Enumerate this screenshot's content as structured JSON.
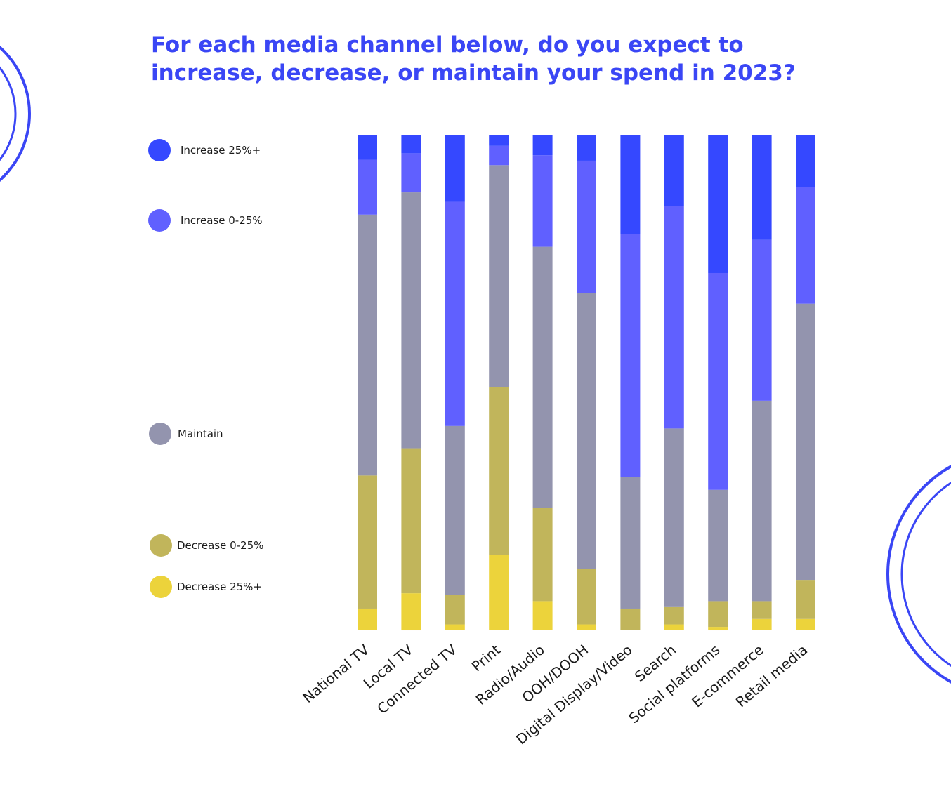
{
  "colors": {
    "title": "#3a46f5",
    "increase_25_plus": "#3548ff",
    "increase_0_25": "#6060ff",
    "maintain": "#9394ae",
    "decrease_0_25": "#c1b55b",
    "decrease_25_plus": "#ecd33b",
    "decoration": "#3a46f5"
  },
  "title": {
    "line1": "For each media channel below, do you expect to",
    "line2": "increase, decrease, or maintain your spend in 2023?"
  },
  "legend": [
    {
      "key": "increase_25_plus",
      "label": "Increase 25%+",
      "color": "#3548ff"
    },
    {
      "key": "increase_0_25",
      "label": "Increase 0-25%",
      "color": "#6060ff"
    },
    {
      "key": "maintain",
      "label": "Maintain",
      "color": "#9394ae"
    },
    {
      "key": "decrease_0_25",
      "label": "Decrease 0-25%",
      "color": "#c1b55b"
    },
    {
      "key": "decrease_25_plus",
      "label": "Decrease 25%+",
      "color": "#ecd33b"
    }
  ],
  "chart_data": {
    "type": "bar",
    "stacked": true,
    "title": "For each media channel below, do you expect to increase, decrease, or maintain your spend in 2023?",
    "xlabel": "",
    "ylabel": "",
    "ylim": [
      0,
      100
    ],
    "categories": [
      "National TV",
      "Local TV",
      "Connected TV",
      "Print",
      "Radio/Audio",
      "OOH/DOOH",
      "Digital Display/Video",
      "Search",
      "Social platforms",
      "E-commerce",
      "Retail media"
    ],
    "series": [
      {
        "name": "Decrease 25%+",
        "color": "#ecd33b",
        "values": [
          4.4,
          7.5,
          1.2,
          15.3,
          5.9,
          1.2,
          0.1,
          1.2,
          0.7,
          2.3,
          2.3
        ]
      },
      {
        "name": "Decrease 0-25%",
        "color": "#c1b55b",
        "values": [
          26.9,
          29.3,
          5.9,
          33.9,
          18.9,
          11.2,
          4.3,
          3.5,
          5.2,
          3.6,
          7.9
        ]
      },
      {
        "name": "Maintain",
        "color": "#9394ae",
        "values": [
          52.7,
          51.7,
          34.2,
          44.8,
          52.7,
          55.7,
          26.6,
          36.1,
          22.5,
          40.5,
          55.8
        ]
      },
      {
        "name": "Increase 0-25%",
        "color": "#6060ff",
        "values": [
          11.1,
          7.9,
          45.3,
          3.9,
          18.5,
          26.8,
          49.0,
          44.9,
          43.8,
          32.5,
          23.6
        ]
      },
      {
        "name": "Increase 25%+",
        "color": "#3548ff",
        "values": [
          4.9,
          3.6,
          13.4,
          2.1,
          4.0,
          5.1,
          20.0,
          14.3,
          27.8,
          21.1,
          10.4
        ]
      }
    ]
  }
}
